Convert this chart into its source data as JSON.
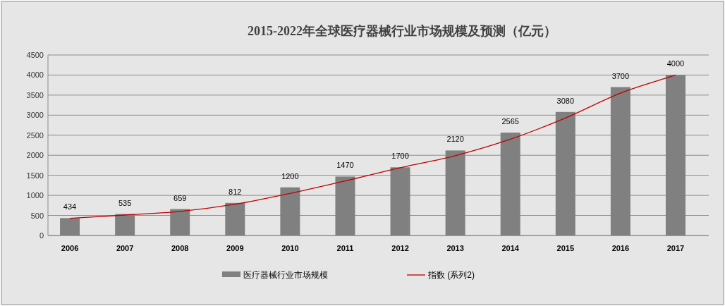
{
  "chart_data": {
    "type": "bar",
    "title": "2015-2022年全球医疗器械行业市场规模及预测（亿元）",
    "categories": [
      "2006",
      "2007",
      "2008",
      "2009",
      "2010",
      "2011",
      "2012",
      "2013",
      "2014",
      "2015",
      "2016",
      "2017"
    ],
    "series": [
      {
        "name": "医疗器械行业市场规模",
        "color": "#808080",
        "values": [
          434,
          535,
          659,
          812,
          1200,
          1470,
          1700,
          2120,
          2565,
          3080,
          3700,
          4000
        ],
        "value_labels": [
          "434",
          "535",
          "659",
          "812",
          "1200",
          "1470",
          "1700",
          "2120",
          "2565",
          "3080",
          "3700",
          "4000"
        ]
      },
      {
        "name": "指数 (系列2)",
        "type": "line",
        "color": "#c00000",
        "values": [
          430,
          510,
          600,
          780,
          1050,
          1360,
          1690,
          1990,
          2400,
          2930,
          3550,
          4000
        ]
      }
    ],
    "ylim": [
      0,
      4500
    ],
    "yticks": [
      0,
      500,
      1000,
      1500,
      2000,
      2500,
      3000,
      3500,
      4000,
      4500
    ],
    "grid": "y",
    "legend": "bottom"
  }
}
